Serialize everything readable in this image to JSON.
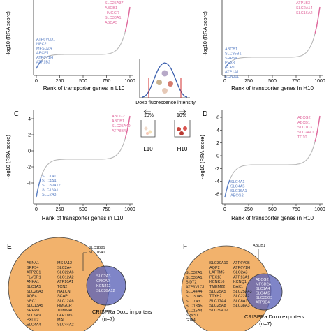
{
  "colors": {
    "curve": "#b8b8b8",
    "pink": "#e0679c",
    "blue": "#5a7fc4",
    "orange": "#f2b26c",
    "venn_blue": "#5b63b8",
    "distribution": "#3a5fae",
    "cutoff": "#d32f2f"
  },
  "panels": {
    "A": {
      "label": "",
      "xlabel": "Rank of transporter genes in L10",
      "ylabel": "-log10 (RRA score)",
      "xticks": [
        "0",
        "250",
        "500",
        "750",
        "1000"
      ],
      "yticks": [],
      "top_genes": [
        "SLC25A37",
        "ABCB1",
        "HMGCR",
        "SLC38A1",
        "ABCA5"
      ],
      "bottom_genes": [
        "ATP6V0D1",
        "NPC2",
        "MFSD2A",
        "ABCE1",
        "ATP6V1H",
        "ATP1B2"
      ]
    },
    "B": {
      "label": "",
      "xlabel": "Rank of transporter genes in H10",
      "ylabel": "-log10 (RRA score)",
      "xticks": [
        "0",
        "250",
        "500",
        "750",
        "1000"
      ],
      "yticks": [],
      "top_genes": [
        "ATP1B3",
        "SLC2A14",
        "SLC16A2"
      ],
      "bottom_genes": [
        "ABCB1",
        "SLC35B1",
        "SRP54",
        "PEX3",
        "SCP1",
        "ATP1A1",
        "KCNJ11"
      ]
    },
    "C": {
      "label": "C",
      "xlabel": "Rank of transporter genes in L10",
      "ylabel": "-log10 (RRA score)",
      "xticks": [
        "0",
        "250",
        "500",
        "750",
        "1000"
      ],
      "yticks": [
        "4",
        "2",
        "0",
        "-2",
        "-4"
      ],
      "top_genes": [
        "ABCG2",
        "ABCB1",
        "SLC25A40",
        "ATP8B4"
      ],
      "bottom_genes": [
        "SLC1A1",
        "SLC4A4",
        "SLC39A12",
        "SLC16A1",
        "SLC2A3"
      ]
    },
    "D": {
      "label": "D",
      "xlabel": "Rank of transporter genes in H10",
      "ylabel": "-log10 (RRA score)",
      "xticks": [
        "0",
        "250",
        "500",
        "750",
        "1000"
      ],
      "yticks": [
        "6",
        "4",
        "2",
        "0",
        "-2",
        "-4",
        "-6"
      ],
      "top_genes": [
        "ABCG2",
        "ABCB1",
        "SLC1C3",
        "SLC24A1",
        "TC10"
      ],
      "bottom_genes": [
        "SLC4A1",
        "SLC4A5",
        "SLC16A1",
        "ABCG2"
      ]
    }
  },
  "middle": {
    "xlabel": "Doxo fluorescence intensity",
    "left_pct": "10%",
    "right_pct": "10%",
    "left_tube": "L10",
    "right_tube": "H10"
  },
  "venn_e": {
    "label": "E",
    "top_genes": [
      "SLC1B81",
      "SLC16A1"
    ],
    "col1": [
      "ASNA1",
      "SRP54",
      "ATP2C1",
      "FLVCR1",
      "ANKA1",
      "SLC1A5",
      "SLC26A3",
      "AQP4",
      "NPC1",
      "SLC13A5",
      "SRPR8",
      "SLC9A9",
      "PXDL2",
      "SLC4A4"
    ],
    "col2": [
      "MS4A12",
      "SLC2A4",
      "SLC22A6",
      "SLC12A2",
      "ATP10A1",
      "TCN2",
      "NALCN",
      "SCAP",
      "SLC12A6",
      "HMGCR",
      "TOMM40",
      "LAPTM5",
      "MAL",
      "SLC44A2"
    ],
    "overlap": [
      "SLC2A3",
      "CNGA2",
      "KCNJ12",
      "SLC39A12"
    ],
    "caption_title": "CRISPRa Doxo importers",
    "caption_n": "(n=7)"
  },
  "venn_f": {
    "label": "F",
    "top_genes": [
      "ABCB1"
    ],
    "col1": [
      "SLC32A1",
      "SLC35A1",
      "SIDT2",
      "ATP6V1C1",
      "SLC44A4",
      "SLC30A5",
      "SLC7A3",
      "SLC13A5",
      "SLC15A4",
      "SPNS1",
      "GJA4"
    ],
    "col2": [
      "SLC30A10",
      "AQP2",
      "LAPTM5",
      "PEX13",
      "KCNK16",
      "TMEM22",
      "SLC25A5",
      "TTYH2",
      "SLC17A4",
      "SLC25A8",
      "SLC39A12"
    ],
    "col3": [
      "ATP6V0B",
      "ATP6V1H",
      "SLC2A3",
      "ATP13A1",
      "KCNQ1",
      "BAK1",
      "SLC25A43",
      "SLC22A2",
      "SLC6A1",
      "SLC38A3"
    ],
    "overlap": [
      "ABCG2",
      "MFSD2A",
      "SLC1A4",
      "SLC4A5",
      "SLC35G5",
      "ATP8B4"
    ],
    "caption_title": "CRISPRa Doxo exporters",
    "caption_n": "(n=7)"
  }
}
